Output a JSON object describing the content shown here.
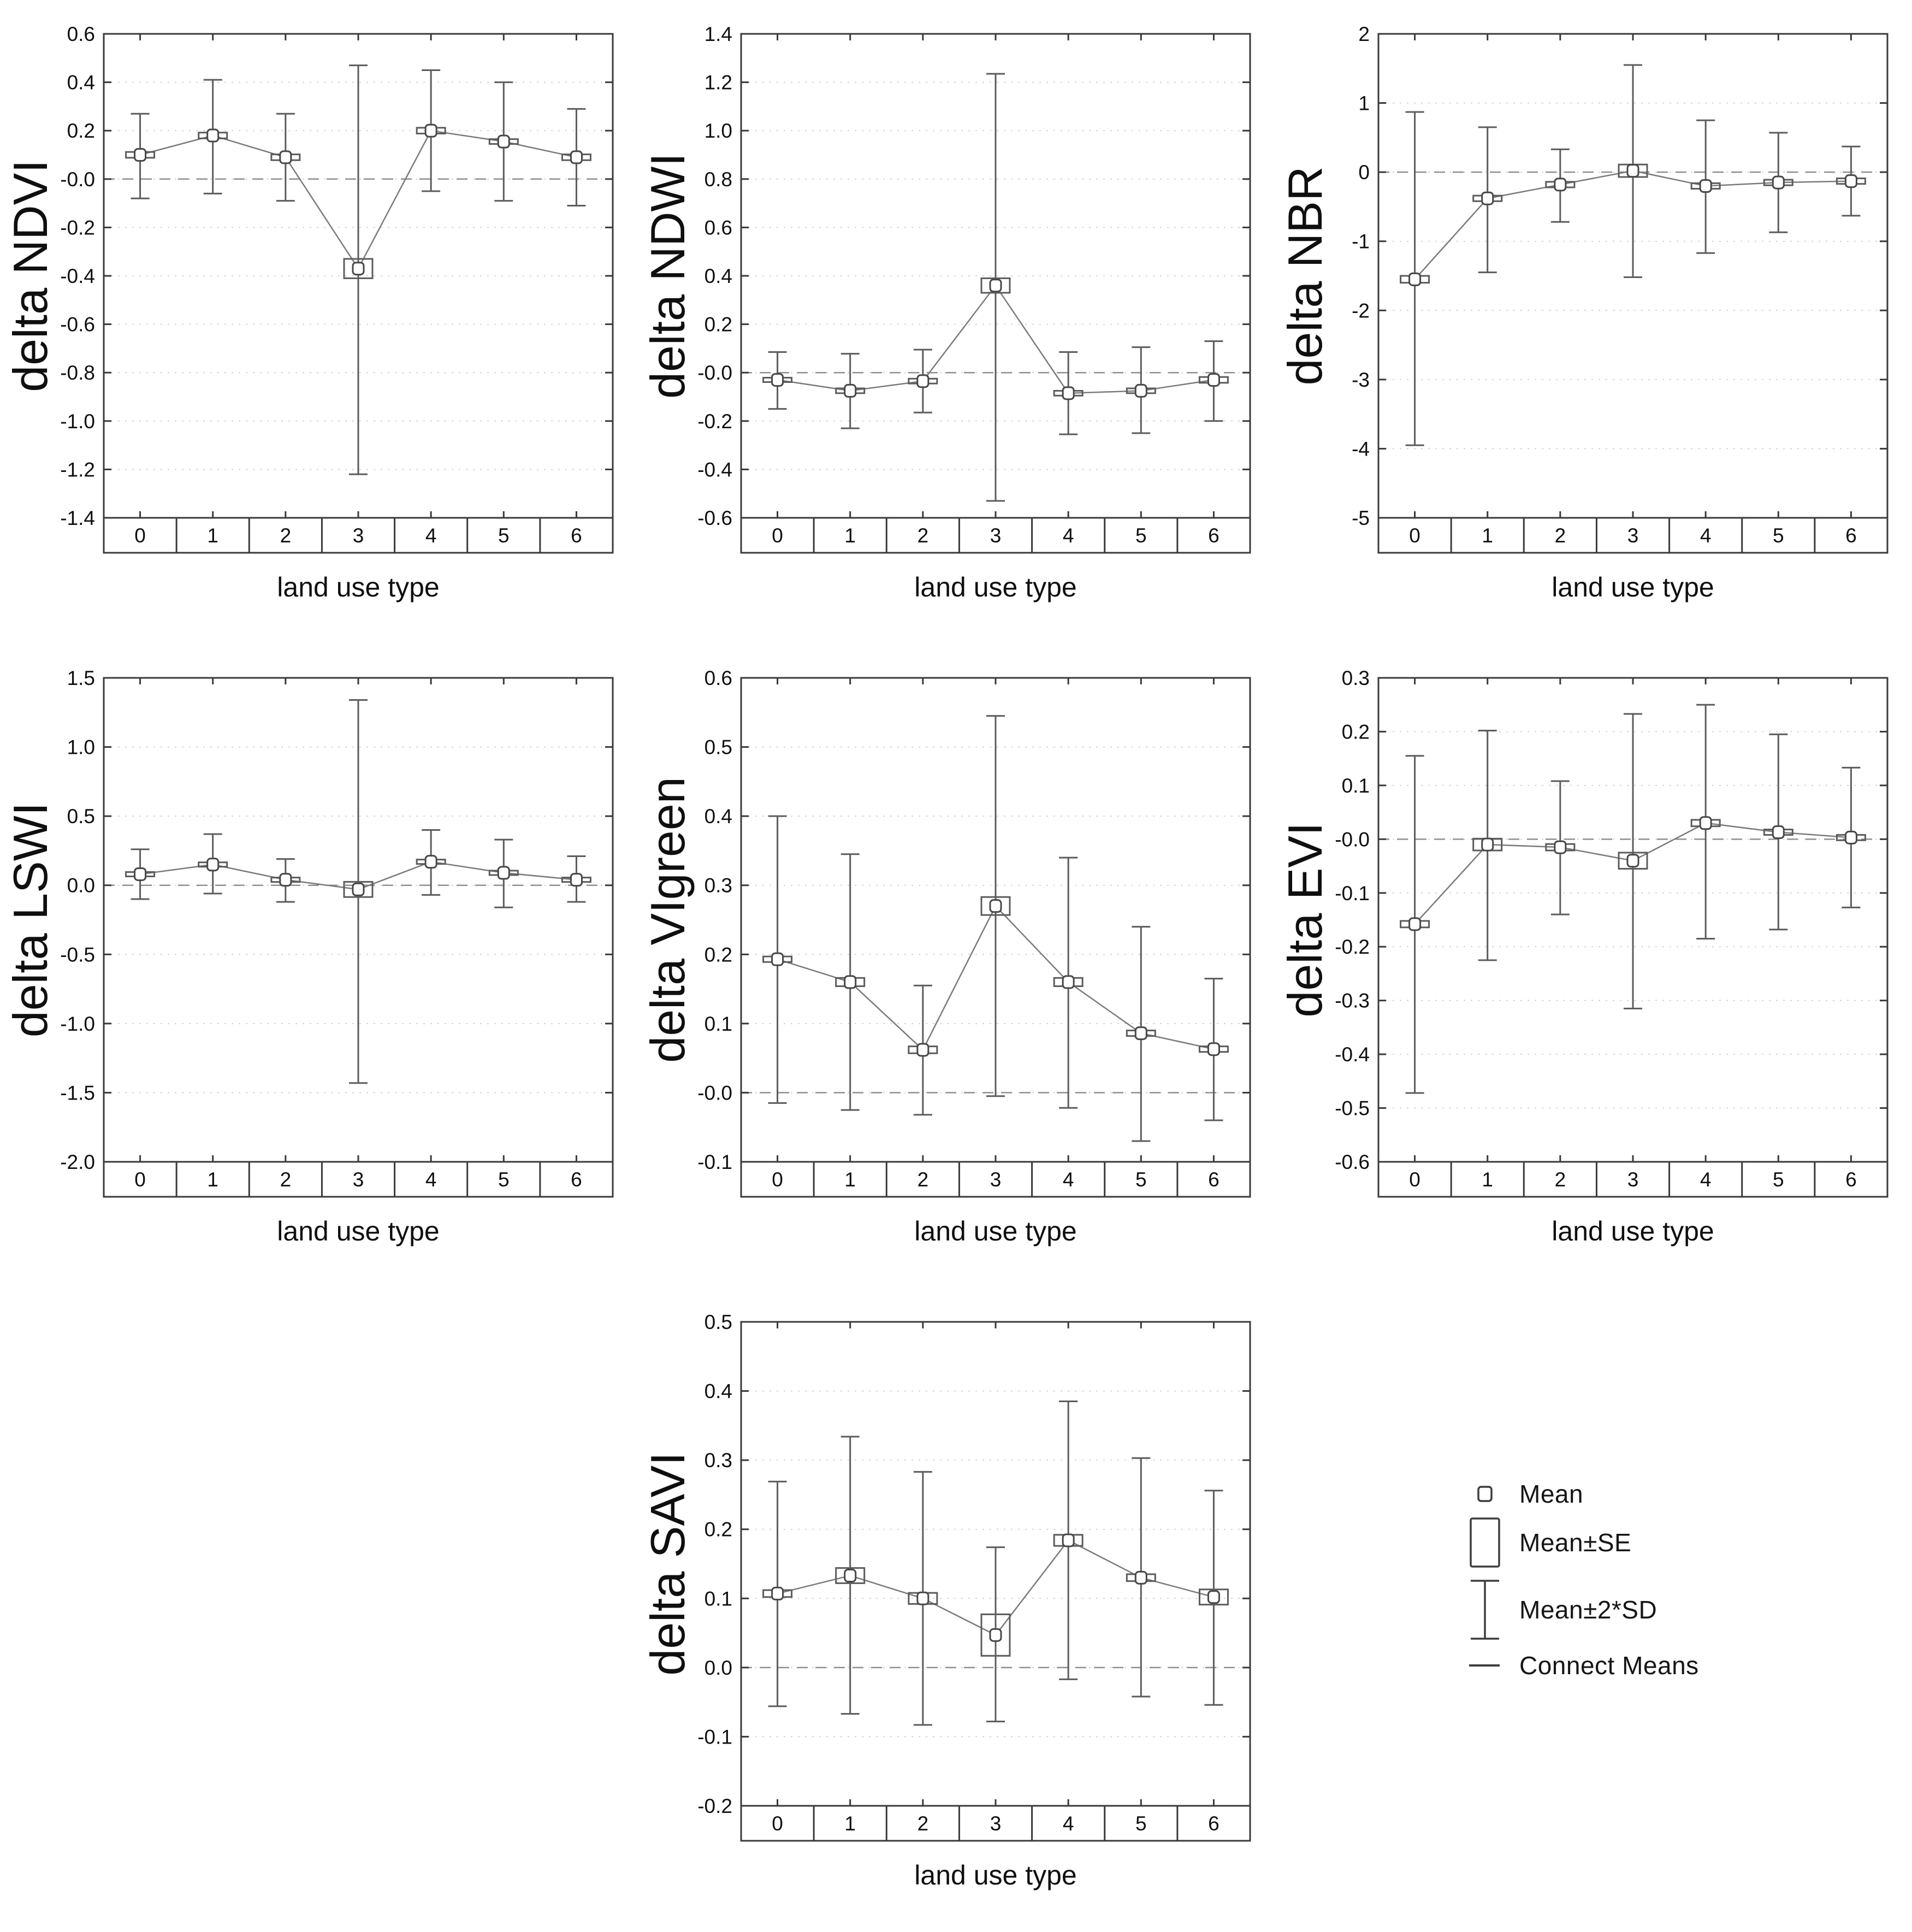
{
  "page": {
    "background": "#ffffff"
  },
  "colors": {
    "frame": "#3a3a3a",
    "grid": "#d4d4d4",
    "zero_line": "#8f8f8f",
    "connect_line": "#7a7a7a",
    "error_bar": "#5c5c5c",
    "marker_stroke": "#474747",
    "text": "#0f0f0f"
  },
  "legend": {
    "items": [
      {
        "symbol": "mean-marker",
        "label": "Mean"
      },
      {
        "symbol": "se-box",
        "label": "Mean±SE"
      },
      {
        "symbol": "sd-whisker",
        "label": "Mean±2*SD"
      },
      {
        "symbol": "connect-line",
        "label": "Connect Means"
      }
    ]
  },
  "chart_data": [
    {
      "type": "line",
      "title": "",
      "ylabel": "delta NDVI",
      "xlabel": "land use type",
      "categories": [
        "0",
        "1",
        "2",
        "3",
        "4",
        "5",
        "6"
      ],
      "ylim": [
        -1.4,
        0.6
      ],
      "ytick_step": 0.2,
      "ytick_decimals": 1,
      "grid": true,
      "zero_line": true,
      "legend_position": "none",
      "series": [
        {
          "name": "Mean",
          "mean": [
            0.1,
            0.18,
            0.09,
            -0.37,
            0.2,
            0.155,
            0.09
          ],
          "se": [
            0.012,
            0.012,
            0.012,
            0.04,
            0.012,
            0.01,
            0.012
          ],
          "sd2_low": [
            -0.08,
            -0.06,
            -0.09,
            -1.22,
            -0.05,
            -0.09,
            -0.11
          ],
          "sd2_high": [
            0.27,
            0.41,
            0.27,
            0.47,
            0.45,
            0.4,
            0.29
          ]
        }
      ]
    },
    {
      "type": "line",
      "title": "",
      "ylabel": "delta NDWI",
      "xlabel": "land use type",
      "categories": [
        "0",
        "1",
        "2",
        "3",
        "4",
        "5",
        "6"
      ],
      "ylim": [
        -0.6,
        1.4
      ],
      "ytick_step": 0.2,
      "ytick_decimals": 1,
      "grid": true,
      "zero_line": true,
      "legend_position": "none",
      "series": [
        {
          "name": "Mean",
          "mean": [
            -0.03,
            -0.075,
            -0.035,
            0.36,
            -0.085,
            -0.075,
            -0.03
          ],
          "se": [
            0.008,
            0.01,
            0.01,
            0.03,
            0.01,
            0.01,
            0.012
          ],
          "sd2_low": [
            -0.15,
            -0.23,
            -0.165,
            -0.53,
            -0.255,
            -0.25,
            -0.2
          ],
          "sd2_high": [
            0.085,
            0.078,
            0.095,
            1.235,
            0.085,
            0.105,
            0.13
          ]
        }
      ]
    },
    {
      "type": "line",
      "title": "",
      "ylabel": "delta NBR",
      "xlabel": "land use type",
      "categories": [
        "0",
        "1",
        "2",
        "3",
        "4",
        "5",
        "6"
      ],
      "ylim": [
        -5,
        2
      ],
      "ytick_step": 1,
      "ytick_decimals": 0,
      "grid": true,
      "zero_line": true,
      "legend_position": "none",
      "series": [
        {
          "name": "Mean",
          "mean": [
            -1.55,
            -0.38,
            -0.18,
            0.02,
            -0.2,
            -0.15,
            -0.13
          ],
          "se": [
            0.05,
            0.04,
            0.04,
            0.09,
            0.04,
            0.04,
            0.04
          ],
          "sd2_low": [
            -3.95,
            -1.45,
            -0.72,
            -1.52,
            -1.17,
            -0.87,
            -0.63
          ],
          "sd2_high": [
            0.87,
            0.65,
            0.33,
            1.55,
            0.75,
            0.57,
            0.37
          ]
        }
      ]
    },
    {
      "type": "line",
      "title": "",
      "ylabel": "delta LSWI",
      "xlabel": "land use type",
      "categories": [
        "0",
        "1",
        "2",
        "3",
        "4",
        "5",
        "6"
      ],
      "ylim": [
        -2.0,
        1.5
      ],
      "ytick_step": 0.5,
      "ytick_decimals": 1,
      "grid": true,
      "zero_line": true,
      "legend_position": "none",
      "series": [
        {
          "name": "Mean",
          "mean": [
            0.08,
            0.15,
            0.04,
            -0.03,
            0.17,
            0.09,
            0.04
          ],
          "se": [
            0.012,
            0.015,
            0.012,
            0.055,
            0.015,
            0.012,
            0.012
          ],
          "sd2_low": [
            -0.1,
            -0.06,
            -0.12,
            -1.43,
            -0.07,
            -0.16,
            -0.12
          ],
          "sd2_high": [
            0.26,
            0.37,
            0.19,
            1.34,
            0.4,
            0.33,
            0.21
          ]
        }
      ]
    },
    {
      "type": "line",
      "title": "",
      "ylabel": "delta VIgreen",
      "xlabel": "land use type",
      "categories": [
        "0",
        "1",
        "2",
        "3",
        "4",
        "5",
        "6"
      ],
      "ylim": [
        -0.1,
        0.6
      ],
      "ytick_step": 0.1,
      "ytick_decimals": 1,
      "grid": true,
      "zero_line": true,
      "legend_position": "none",
      "series": [
        {
          "name": "Mean",
          "mean": [
            0.193,
            0.16,
            0.062,
            0.27,
            0.16,
            0.086,
            0.063
          ],
          "se": [
            0.004,
            0.006,
            0.005,
            0.013,
            0.006,
            0.004,
            0.004
          ],
          "sd2_low": [
            -0.015,
            -0.025,
            -0.032,
            -0.005,
            -0.022,
            -0.07,
            -0.04
          ],
          "sd2_high": [
            0.4,
            0.345,
            0.155,
            0.545,
            0.34,
            0.24,
            0.165
          ]
        }
      ]
    },
    {
      "type": "line",
      "title": "",
      "ylabel": "delta EVI",
      "xlabel": "land use type",
      "categories": [
        "0",
        "1",
        "2",
        "3",
        "4",
        "5",
        "6"
      ],
      "ylim": [
        -0.6,
        0.3
      ],
      "ytick_step": 0.1,
      "ytick_decimals": 1,
      "grid": true,
      "zero_line": true,
      "legend_position": "none",
      "series": [
        {
          "name": "Mean",
          "mean": [
            -0.158,
            -0.01,
            -0.015,
            -0.04,
            0.03,
            0.013,
            0.003
          ],
          "se": [
            0.006,
            0.011,
            0.006,
            0.015,
            0.006,
            0.005,
            0.005
          ],
          "sd2_low": [
            -0.472,
            -0.225,
            -0.14,
            -0.315,
            -0.185,
            -0.168,
            -0.127
          ],
          "sd2_high": [
            0.155,
            0.202,
            0.108,
            0.233,
            0.25,
            0.195,
            0.133
          ]
        }
      ]
    },
    {
      "type": "line",
      "title": "",
      "ylabel": "delta SAVI",
      "xlabel": "land use type",
      "categories": [
        "0",
        "1",
        "2",
        "3",
        "4",
        "5",
        "6"
      ],
      "ylim": [
        -0.2,
        0.5
      ],
      "ytick_step": 0.1,
      "ytick_decimals": 1,
      "grid": true,
      "zero_line": true,
      "legend_position": "none",
      "series": [
        {
          "name": "Mean",
          "mean": [
            0.107,
            0.133,
            0.1,
            0.047,
            0.184,
            0.13,
            0.102
          ],
          "se": [
            0.005,
            0.011,
            0.008,
            0.03,
            0.008,
            0.005,
            0.011
          ],
          "sd2_low": [
            -0.056,
            -0.067,
            -0.083,
            -0.078,
            -0.017,
            -0.042,
            -0.054
          ],
          "sd2_high": [
            0.269,
            0.334,
            0.283,
            0.174,
            0.385,
            0.303,
            0.256
          ]
        }
      ]
    }
  ]
}
